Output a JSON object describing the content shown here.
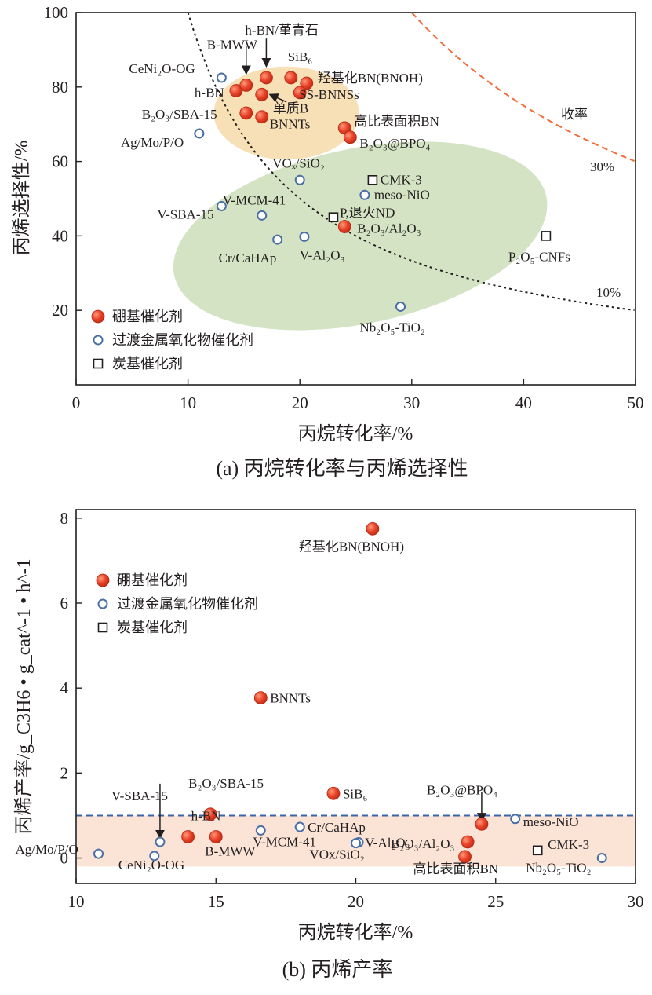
{
  "charts": [
    {
      "type": "scatter",
      "caption": "(a) 丙烷转化率与丙烯选择性",
      "xlabel": "丙烷转化率/%",
      "ylabel": "丙烯选择性/%",
      "xlim": [
        0,
        50
      ],
      "ylim": [
        0,
        100
      ],
      "xticks": [
        "0",
        "10",
        "20",
        "30",
        "40",
        "50"
      ],
      "yticks": [
        "20",
        "40",
        "60",
        "80",
        "100"
      ],
      "legend": {
        "placement": "bottom-left",
        "items": [
          {
            "marker": "boron",
            "label": "硼基催化剂"
          },
          {
            "marker": "metal",
            "label": "过渡金属氧化物催化剂"
          },
          {
            "marker": "carbon",
            "label": "炭基催化剂"
          }
        ]
      },
      "curves": [
        {
          "label": "收率",
          "yield_pct": null,
          "color": "#f26b3a",
          "style": "dashed"
        },
        {
          "label": "30%",
          "yield_pct": 30,
          "color": "#f26b3a",
          "style": "dashed"
        },
        {
          "label": "10%",
          "yield_pct": 10,
          "color": "#231f20",
          "style": "dotted"
        }
      ],
      "regions": [
        {
          "name": "boron-region",
          "color": "#f6dcae",
          "cx": 18.8,
          "cy": 73,
          "rx": 6.5,
          "ry": 12.5
        },
        {
          "name": "metal-oxide-region",
          "color": "#cfe0bd",
          "cx": 25.4,
          "cy": 40,
          "rx": 17,
          "ry": 23.5,
          "angle_deg": 12
        }
      ],
      "points": [
        {
          "x": 13.0,
          "y": 82.5,
          "cat": "metal",
          "label": "CeNi₂O-OG"
        },
        {
          "x": 11.0,
          "y": 67.5,
          "cat": "metal",
          "label": "Ag/Mo/P/O"
        },
        {
          "x": 14.3,
          "y": 79.0,
          "cat": "boron",
          "label": "h-BN"
        },
        {
          "x": 15.2,
          "y": 80.5,
          "cat": "boron",
          "label": "B-MWW"
        },
        {
          "x": 15.2,
          "y": 73.0,
          "cat": "boron",
          "label": "B₂O₃/SBA-15"
        },
        {
          "x": 17.0,
          "y": 82.5,
          "cat": "boron",
          "label": "h-BN/堇青石"
        },
        {
          "x": 16.6,
          "y": 78.0,
          "cat": "boron",
          "label": "单质B"
        },
        {
          "x": 16.6,
          "y": 72.0,
          "cat": "boron",
          "label": "BNNTs"
        },
        {
          "x": 19.2,
          "y": 82.5,
          "cat": "boron",
          "label": "SiB₆"
        },
        {
          "x": 20.6,
          "y": 81.0,
          "cat": "boron",
          "label": "羟基化BN(BNOH)"
        },
        {
          "x": 20.0,
          "y": 78.5,
          "cat": "boron",
          "label": "SS-BNNSs"
        },
        {
          "x": 24.0,
          "y": 69.0,
          "cat": "boron",
          "label": "高比表面积BN"
        },
        {
          "x": 24.5,
          "y": 66.5,
          "cat": "boron",
          "label": "B₂O₃@BPO₄"
        },
        {
          "x": 24.0,
          "y": 42.5,
          "cat": "boron",
          "label": "B₂O₃/Al₂O₃"
        },
        {
          "x": 20.0,
          "y": 55.0,
          "cat": "metal",
          "label": "VOₓ/SiO₂"
        },
        {
          "x": 25.8,
          "y": 51.0,
          "cat": "metal",
          "label": "meso-NiO"
        },
        {
          "x": 16.6,
          "y": 45.5,
          "cat": "metal",
          "label": "V-MCM-41"
        },
        {
          "x": 13.0,
          "y": 48.0,
          "cat": "metal",
          "label": "V-SBA-15"
        },
        {
          "x": 18.0,
          "y": 39.0,
          "cat": "metal",
          "label": "Cr/CaHAp"
        },
        {
          "x": 20.4,
          "y": 39.8,
          "cat": "metal",
          "label": "V-Al₂O₃"
        },
        {
          "x": 29.0,
          "y": 21.0,
          "cat": "metal",
          "label": "Nb₂O₅-TiO₂"
        },
        {
          "x": 26.5,
          "y": 55.0,
          "cat": "carbon",
          "label": "CMK-3"
        },
        {
          "x": 23.0,
          "y": 45.0,
          "cat": "carbon",
          "label": "P,退火ND"
        },
        {
          "x": 42.0,
          "y": 40.0,
          "cat": "carbon",
          "label": "P₂O₅-CNFs"
        }
      ]
    },
    {
      "type": "scatter",
      "caption": "(b) 丙烯产率",
      "xlabel": "丙烷转化率/%",
      "ylabel": "丙烯产率/g_C3H6 • g_cat^-1 • h^-1",
      "xlim": [
        10,
        30
      ],
      "ylim": [
        -0.6,
        8.2
      ],
      "xticks": [
        "10",
        "15",
        "20",
        "25",
        "30"
      ],
      "yticks": [
        "0",
        "2",
        "4",
        "6",
        "8"
      ],
      "threshold": {
        "y": 1.0,
        "color": "#3b63a8",
        "style": "dashed"
      },
      "band": {
        "y0": -0.2,
        "y1": 1.0,
        "color": "#fbe3d6"
      },
      "legend": {
        "placement": "top-left",
        "items": [
          {
            "marker": "boron",
            "label": "硼基催化剂"
          },
          {
            "marker": "metal",
            "label": "过渡金属氧化物催化剂"
          },
          {
            "marker": "carbon",
            "label": "炭基催化剂"
          }
        ]
      },
      "points": [
        {
          "x": 20.6,
          "y": 7.75,
          "cat": "boron",
          "label": "羟基化BN(BNOH)"
        },
        {
          "x": 16.6,
          "y": 3.77,
          "cat": "boron",
          "label": "BNNTs"
        },
        {
          "x": 19.2,
          "y": 1.52,
          "cat": "boron",
          "label": "SiB₆"
        },
        {
          "x": 14.8,
          "y": 1.03,
          "cat": "boron",
          "label": "B₂O₃/SBA-15"
        },
        {
          "x": 24.5,
          "y": 0.8,
          "cat": "boron",
          "label": "B₂O₃@BPO₄"
        },
        {
          "x": 14.0,
          "y": 0.5,
          "cat": "boron",
          "label": "h-BN"
        },
        {
          "x": 15.0,
          "y": 0.5,
          "cat": "boron",
          "label": "B-MWW"
        },
        {
          "x": 24.0,
          "y": 0.38,
          "cat": "boron",
          "label": "B₂O₃/Al₂O₃"
        },
        {
          "x": 23.9,
          "y": 0.03,
          "cat": "boron",
          "label": "高比表面积BN"
        },
        {
          "x": 13.0,
          "y": 0.38,
          "cat": "metal",
          "label": "V-SBA-15"
        },
        {
          "x": 10.8,
          "y": 0.1,
          "cat": "metal",
          "label": "Ag/Mo/P/O"
        },
        {
          "x": 12.8,
          "y": 0.05,
          "cat": "metal",
          "label": "CeNi₂O-OG"
        },
        {
          "x": 16.6,
          "y": 0.65,
          "cat": "metal",
          "label": "V-MCM-41"
        },
        {
          "x": 18.0,
          "y": 0.73,
          "cat": "metal",
          "label": "Cr/CaHAp"
        },
        {
          "x": 20.1,
          "y": 0.37,
          "cat": "metal",
          "label": "V-Al₂O₃"
        },
        {
          "x": 20.0,
          "y": 0.35,
          "cat": "metal",
          "label": "VOx/SiO₂"
        },
        {
          "x": 25.7,
          "y": 0.92,
          "cat": "metal",
          "label": "meso-NiO"
        },
        {
          "x": 28.8,
          "y": 0.0,
          "cat": "metal",
          "label": "Nb₂O₅-TiO₂"
        },
        {
          "x": 26.5,
          "y": 0.18,
          "cat": "carbon",
          "label": "CMK-3"
        }
      ]
    }
  ],
  "colors": {
    "boron_fill": "#e8432a",
    "boron_stroke": "#b22a16",
    "metal_stroke": "#4a6ea6",
    "carbon_stroke": "#231f20",
    "axis": "#231f20"
  }
}
